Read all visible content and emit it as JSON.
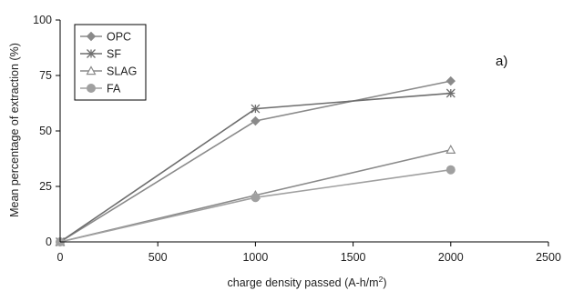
{
  "chart_data": {
    "type": "line",
    "title": "",
    "xlabel": "charge density passed (A-h/m",
    "xlabel_superscript": "2",
    "xlabel_suffix": ")",
    "ylabel": "Mean percentage of extraction (%)",
    "xlim": [
      0,
      2500
    ],
    "ylim": [
      0,
      100
    ],
    "x_ticks": [
      0,
      500,
      1000,
      1500,
      2000,
      2500
    ],
    "y_ticks": [
      0,
      25,
      50,
      75,
      100
    ],
    "grid": false,
    "legend_position": "top-left",
    "annotation": "a)",
    "x": [
      0,
      1000,
      2000
    ],
    "series": [
      {
        "name": "OPC",
        "marker": "diamond",
        "color": "#8a8a8a",
        "values": [
          0,
          54.5,
          72.5
        ]
      },
      {
        "name": "SF",
        "marker": "asterisk",
        "color": "#6e6e6e",
        "values": [
          0,
          60,
          67
        ]
      },
      {
        "name": "SLAG",
        "marker": "triangle-open",
        "color": "#8a8a8a",
        "values": [
          0,
          21,
          41.5
        ]
      },
      {
        "name": "FA",
        "marker": "circle",
        "color": "#a0a0a0",
        "values": [
          0,
          20,
          32.5
        ]
      }
    ]
  }
}
